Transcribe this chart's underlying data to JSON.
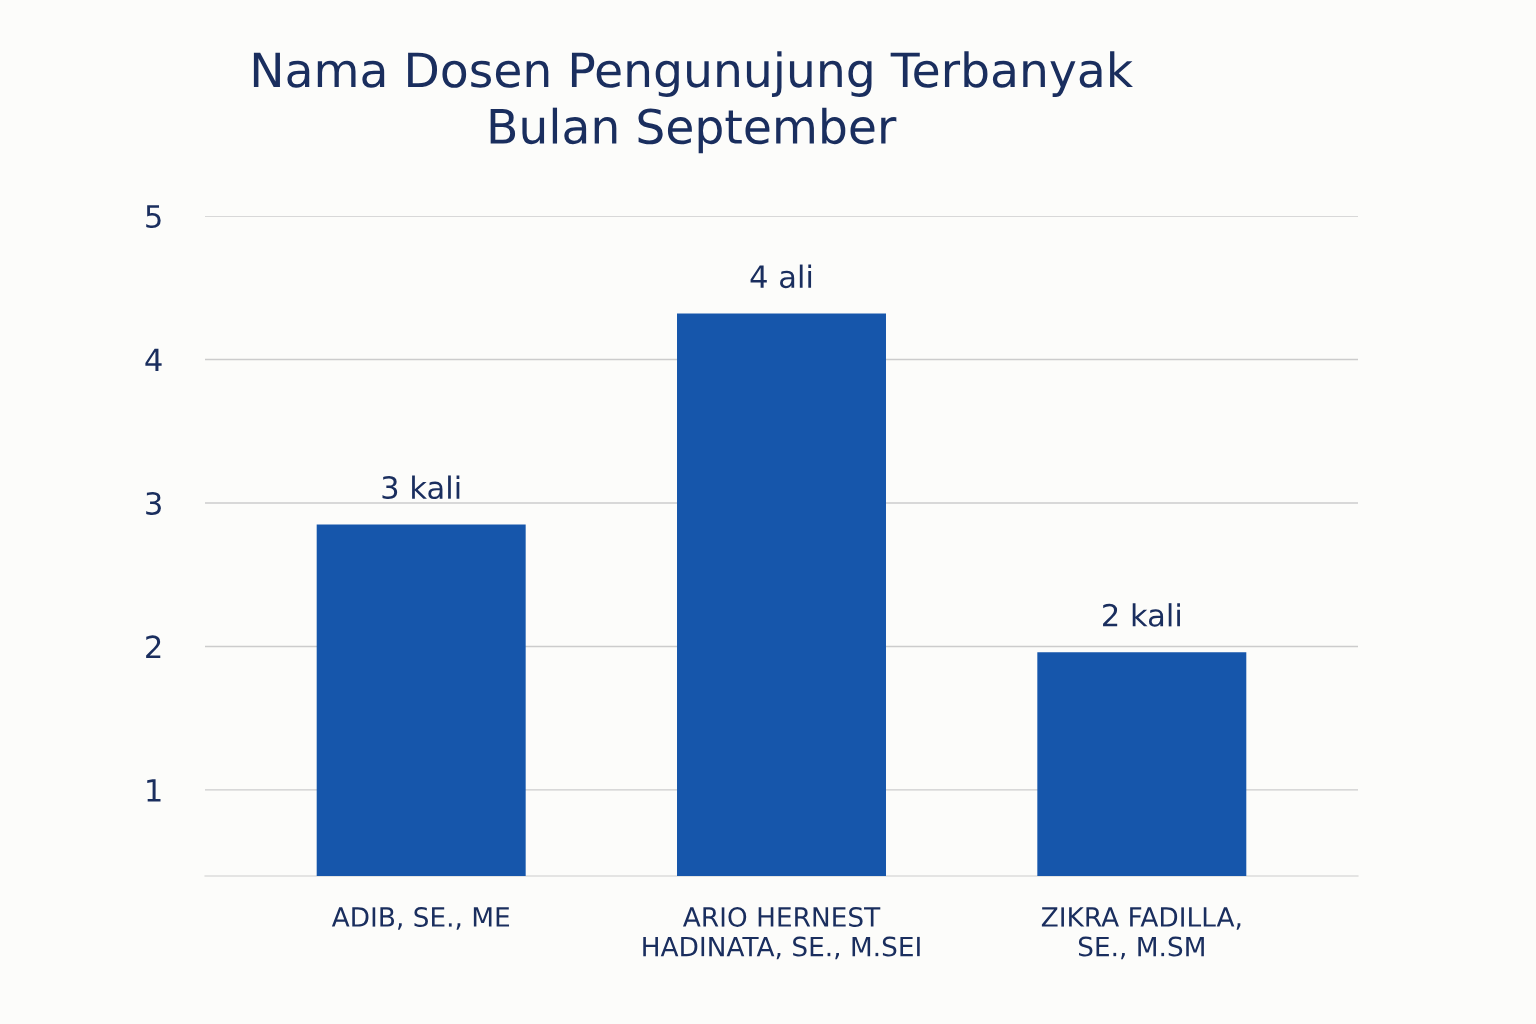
{
  "chart_data": {
    "type": "bar",
    "title": "Nama Dosen Pengunujung Terbanyak\nBulan September",
    "categories": [
      "ADIB, SE., ME",
      "ARIO HERNEST\nHADINATA, SE., M.SEI",
      "ZIKRA FADILLA,\nSE., M.SM"
    ],
    "values": [
      2.85,
      4.32,
      1.96
    ],
    "value_labels": [
      "3 kali",
      "4 ali",
      "2 kali"
    ],
    "color": "#1656ab",
    "ylim": [
      0.4,
      5
    ],
    "yticks": [
      1,
      2,
      3,
      4,
      5
    ],
    "grid": "y"
  }
}
